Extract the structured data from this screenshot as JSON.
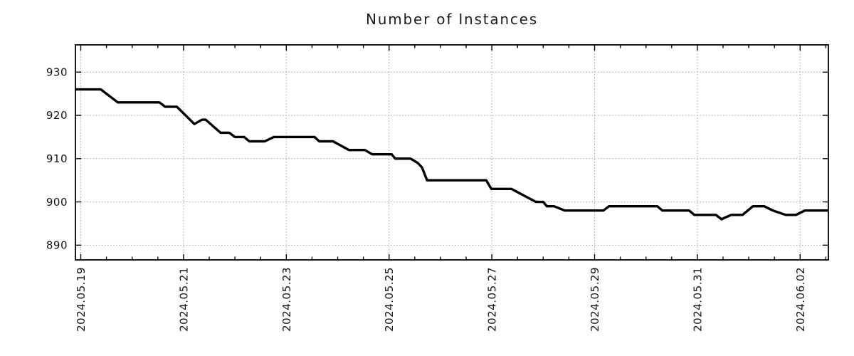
{
  "chart_data": {
    "type": "line",
    "title": "Number of Instances",
    "x_unit": "days since 2024-05-19 00:00 (dates shown on axis)",
    "x_range": [
      -0.104,
      14.55
    ],
    "y_range": [
      886.6,
      936.3
    ],
    "x_ticks": [
      {
        "t": 0,
        "label": "2024.05.19"
      },
      {
        "t": 2,
        "label": "2024.05.21"
      },
      {
        "t": 4,
        "label": "2024.05.23"
      },
      {
        "t": 6,
        "label": "2024.05.25"
      },
      {
        "t": 8,
        "label": "2024.05.27"
      },
      {
        "t": 10,
        "label": "2024.05.29"
      },
      {
        "t": 12,
        "label": "2024.05.31"
      },
      {
        "t": 14,
        "label": "2024.06.02"
      }
    ],
    "x_minor_step": 0.5,
    "y_ticks": [
      890,
      900,
      910,
      920,
      930
    ],
    "grid": "dotted",
    "grid_color": "#9e9e9e",
    "axis_color": "#000000",
    "background": "#ffffff",
    "legend": "none",
    "series": [
      {
        "name": "instances",
        "color": "#000000",
        "points": [
          [
            -0.1,
            926
          ],
          [
            0.39,
            926
          ],
          [
            0.72,
            923
          ],
          [
            1.53,
            923
          ],
          [
            1.64,
            922
          ],
          [
            1.87,
            922
          ],
          [
            2.21,
            918
          ],
          [
            2.36,
            919
          ],
          [
            2.43,
            919
          ],
          [
            2.72,
            916
          ],
          [
            2.89,
            916
          ],
          [
            3.0,
            915
          ],
          [
            3.18,
            915
          ],
          [
            3.28,
            914
          ],
          [
            3.58,
            914
          ],
          [
            3.76,
            915
          ],
          [
            4.55,
            915
          ],
          [
            4.64,
            914
          ],
          [
            4.91,
            914
          ],
          [
            5.22,
            912
          ],
          [
            5.53,
            912
          ],
          [
            5.67,
            911
          ],
          [
            6.05,
            911
          ],
          [
            6.12,
            910
          ],
          [
            6.42,
            910
          ],
          [
            6.56,
            909
          ],
          [
            6.64,
            908
          ],
          [
            6.74,
            905
          ],
          [
            7.89,
            905
          ],
          [
            7.99,
            903
          ],
          [
            8.38,
            903
          ],
          [
            8.86,
            900
          ],
          [
            9.0,
            900
          ],
          [
            9.07,
            899
          ],
          [
            9.21,
            899
          ],
          [
            9.42,
            898
          ],
          [
            10.17,
            898
          ],
          [
            10.28,
            899
          ],
          [
            11.22,
            899
          ],
          [
            11.32,
            898
          ],
          [
            11.84,
            898
          ],
          [
            11.94,
            897
          ],
          [
            12.36,
            897
          ],
          [
            12.47,
            896
          ],
          [
            12.66,
            897
          ],
          [
            12.88,
            897
          ],
          [
            13.08,
            899
          ],
          [
            13.3,
            899
          ],
          [
            13.47,
            898
          ],
          [
            13.72,
            897
          ],
          [
            13.92,
            897
          ],
          [
            14.09,
            898
          ],
          [
            14.55,
            898
          ]
        ]
      }
    ]
  }
}
